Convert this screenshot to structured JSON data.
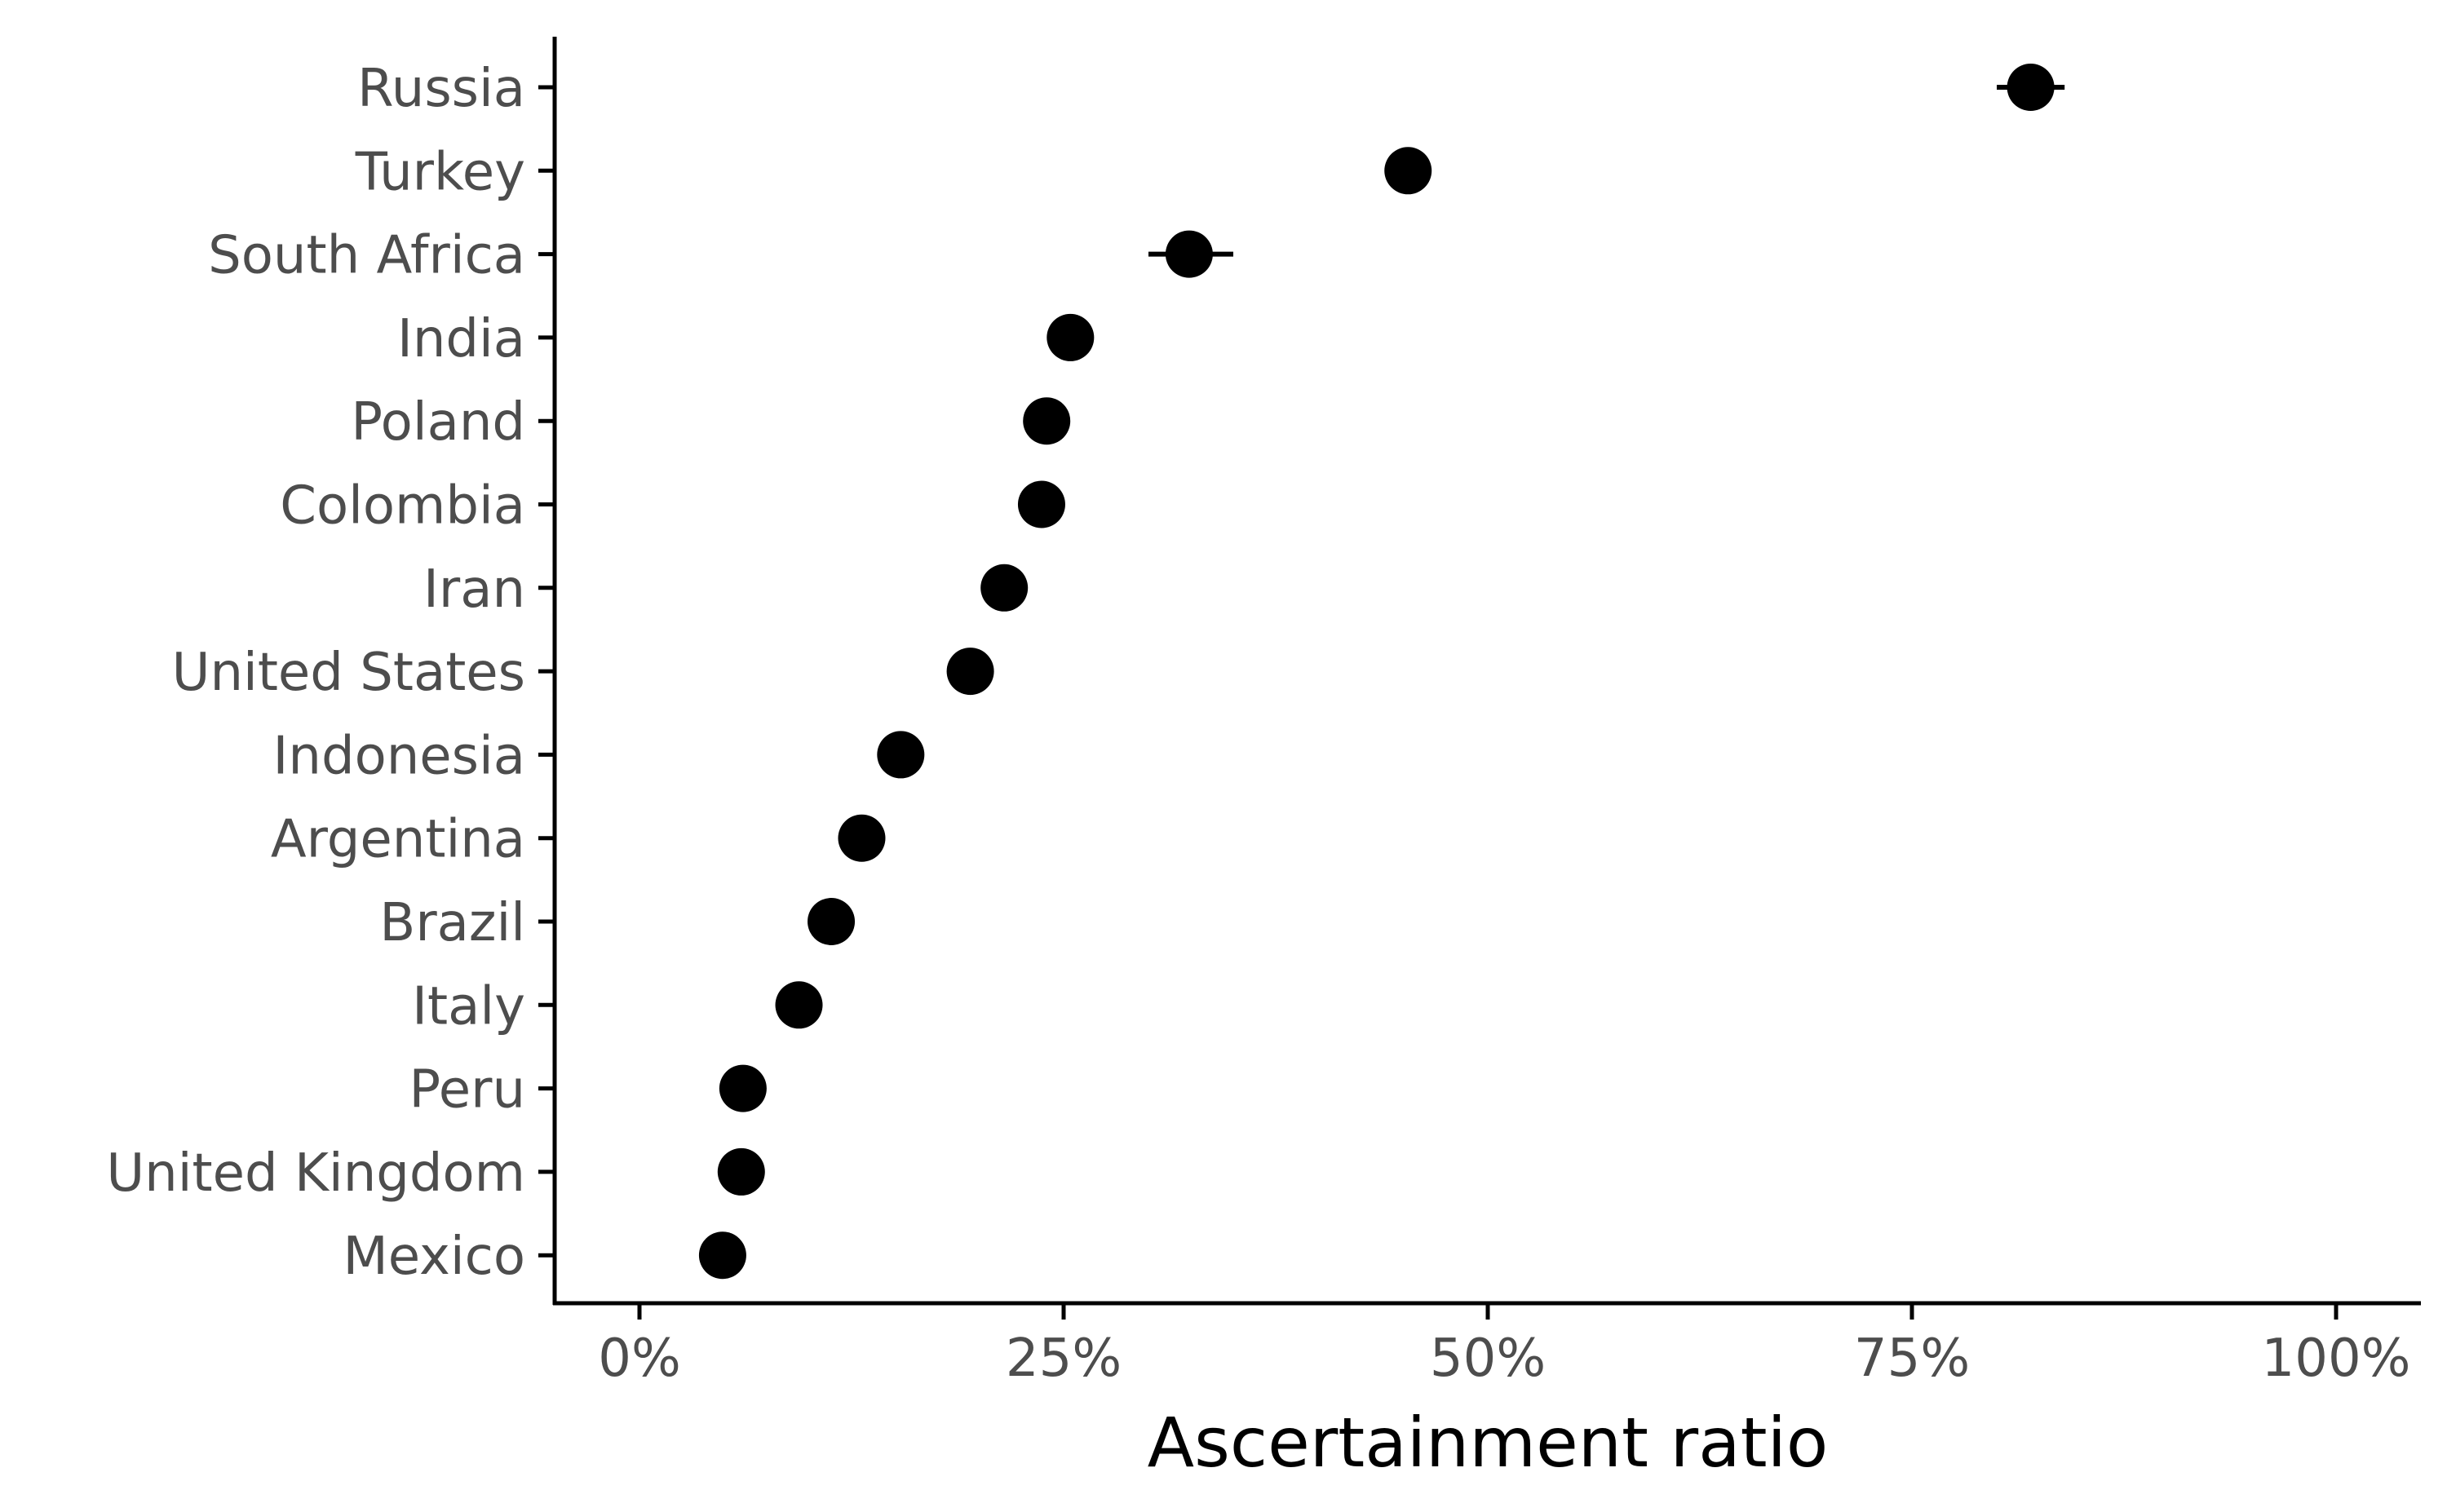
{
  "chart_data": {
    "type": "scatter",
    "xlabel": "Ascertainment ratio",
    "ylabel": "",
    "xlim": [
      -0.05,
      1.05
    ],
    "x_ticks": [
      {
        "value": 0,
        "label": "0%"
      },
      {
        "value": 0.25,
        "label": "25%"
      },
      {
        "value": 0.5,
        "label": "50%"
      },
      {
        "value": 0.75,
        "label": "75%"
      },
      {
        "value": 1.0,
        "label": "100%"
      }
    ],
    "grid": false,
    "legend": "none",
    "colors": {
      "point": "#000000",
      "axis": "#000000",
      "tick_label": "#4d4d4d"
    },
    "points": [
      {
        "country": "Russia",
        "value": 0.82,
        "lower": 0.8,
        "upper": 0.84
      },
      {
        "country": "Turkey",
        "value": 0.453,
        "lower": 0.45,
        "upper": 0.456
      },
      {
        "country": "South Africa",
        "value": 0.324,
        "lower": 0.3,
        "upper": 0.35
      },
      {
        "country": "India",
        "value": 0.254,
        "lower": 0.251,
        "upper": 0.257
      },
      {
        "country": "Poland",
        "value": 0.24,
        "lower": 0.237,
        "upper": 0.243
      },
      {
        "country": "Colombia",
        "value": 0.237,
        "lower": 0.228,
        "upper": 0.25
      },
      {
        "country": "Iran",
        "value": 0.215,
        "lower": 0.212,
        "upper": 0.218
      },
      {
        "country": "United States",
        "value": 0.195,
        "lower": 0.192,
        "upper": 0.198
      },
      {
        "country": "Indonesia",
        "value": 0.154,
        "lower": 0.151,
        "upper": 0.157
      },
      {
        "country": "Argentina",
        "value": 0.131,
        "lower": 0.128,
        "upper": 0.134
      },
      {
        "country": "Brazil",
        "value": 0.113,
        "lower": 0.11,
        "upper": 0.116
      },
      {
        "country": "Italy",
        "value": 0.094,
        "lower": 0.091,
        "upper": 0.097
      },
      {
        "country": "Peru",
        "value": 0.061,
        "lower": 0.058,
        "upper": 0.064
      },
      {
        "country": "United Kingdom",
        "value": 0.06,
        "lower": 0.057,
        "upper": 0.063
      },
      {
        "country": "Mexico",
        "value": 0.049,
        "lower": 0.046,
        "upper": 0.052
      }
    ]
  }
}
